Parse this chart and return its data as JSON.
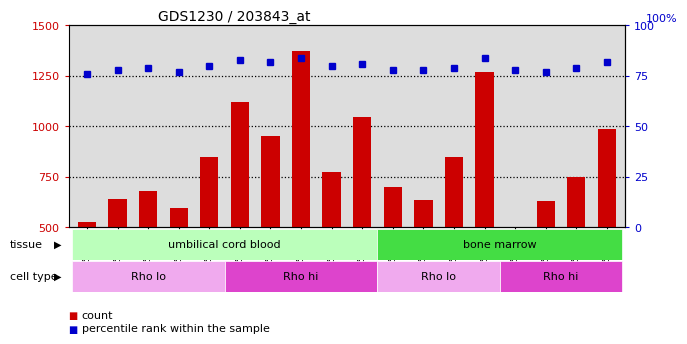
{
  "title": "GDS1230 / 203843_at",
  "samples": [
    "GSM51392",
    "GSM51394",
    "GSM51396",
    "GSM51398",
    "GSM51400",
    "GSM51391",
    "GSM51393",
    "GSM51395",
    "GSM51397",
    "GSM51399",
    "GSM51402",
    "GSM51404",
    "GSM51406",
    "GSM51408",
    "GSM51401",
    "GSM51403",
    "GSM51405",
    "GSM51407"
  ],
  "counts": [
    525,
    640,
    680,
    595,
    845,
    1120,
    950,
    1370,
    775,
    1045,
    700,
    635,
    845,
    1270,
    500,
    630,
    750,
    985
  ],
  "percentiles": [
    76,
    78,
    79,
    77,
    80,
    83,
    82,
    84,
    80,
    81,
    78,
    78,
    79,
    84,
    78,
    77,
    79,
    82
  ],
  "ylim_left": [
    500,
    1500
  ],
  "ylim_right": [
    0,
    100
  ],
  "yticks_left": [
    500,
    750,
    1000,
    1250,
    1500
  ],
  "yticks_right": [
    0,
    25,
    50,
    75,
    100
  ],
  "bar_color": "#cc0000",
  "dot_color": "#0000cc",
  "tissue_labels": [
    {
      "label": "umbilical cord blood",
      "start": 0,
      "end": 9,
      "color": "#bbffbb"
    },
    {
      "label": "bone marrow",
      "start": 10,
      "end": 17,
      "color": "#44dd44"
    }
  ],
  "cell_type_labels": [
    {
      "label": "Rho lo",
      "start": 0,
      "end": 4,
      "color": "#f0aaee"
    },
    {
      "label": "Rho hi",
      "start": 5,
      "end": 9,
      "color": "#dd44cc"
    },
    {
      "label": "Rho lo",
      "start": 10,
      "end": 13,
      "color": "#f0aaee"
    },
    {
      "label": "Rho hi",
      "start": 14,
      "end": 17,
      "color": "#dd44cc"
    }
  ],
  "legend_items": [
    {
      "label": "count",
      "color": "#cc0000"
    },
    {
      "label": "percentile rank within the sample",
      "color": "#0000cc"
    }
  ],
  "background_color": "#ffffff",
  "plot_bg_color": "#dddddd",
  "hline_values": [
    750,
    1000,
    1250
  ],
  "title_fontsize": 10,
  "bar_width": 0.6
}
